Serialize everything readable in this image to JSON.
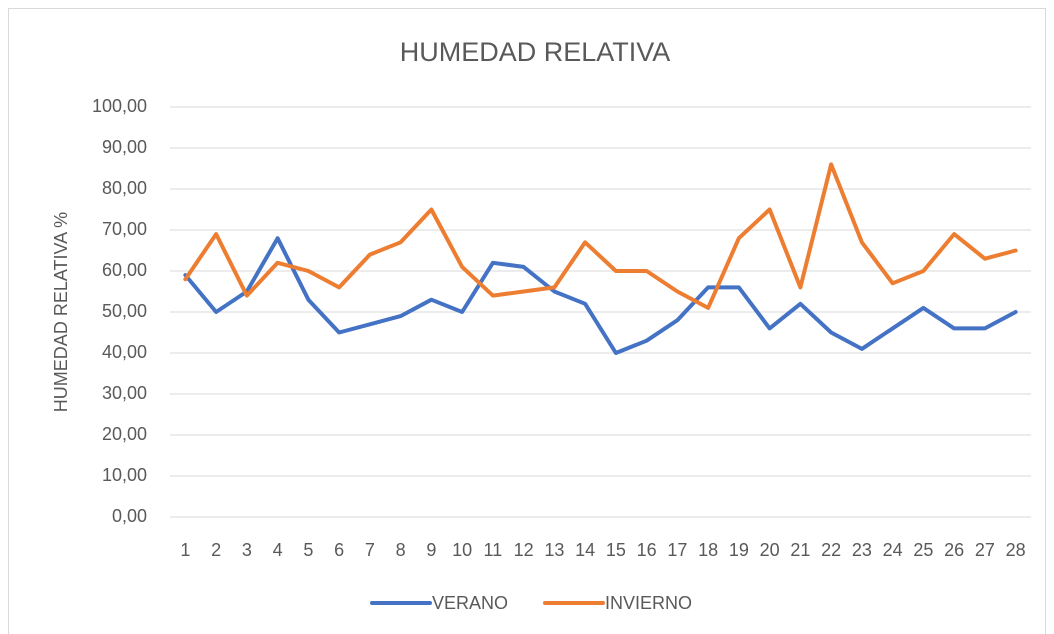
{
  "chart_data": {
    "type": "line",
    "title": "HUMEDAD RELATIVA",
    "y_label": "HUMEDAD RELATIVA %",
    "categories": [
      "1",
      "2",
      "3",
      "4",
      "5",
      "6",
      "7",
      "8",
      "9",
      "10",
      "11",
      "12",
      "13",
      "14",
      "15",
      "16",
      "17",
      "18",
      "19",
      "20",
      "21",
      "22",
      "23",
      "24",
      "25",
      "26",
      "27",
      "28"
    ],
    "series": [
      {
        "name": "VERANO",
        "color": "#4472c4",
        "values": [
          59,
          50,
          55,
          68,
          53,
          45,
          47,
          49,
          53,
          50,
          62,
          61,
          55,
          52,
          40,
          43,
          48,
          56,
          56,
          46,
          52,
          45,
          41,
          46,
          51,
          46,
          46,
          50
        ]
      },
      {
        "name": "INVIERNO",
        "color": "#ed7d31",
        "values": [
          58,
          69,
          54,
          62,
          60,
          56,
          64,
          67,
          75,
          61,
          54,
          55,
          56,
          67,
          60,
          60,
          55,
          51,
          68,
          75,
          56,
          86,
          67,
          57,
          60,
          69,
          63,
          65
        ]
      }
    ],
    "ylim": [
      0,
      100
    ],
    "yticks": [
      {
        "value": 0,
        "label": "0,00"
      },
      {
        "value": 10,
        "label": "10,00"
      },
      {
        "value": 20,
        "label": "20,00"
      },
      {
        "value": 30,
        "label": "30,00"
      },
      {
        "value": 40,
        "label": "40,00"
      },
      {
        "value": 50,
        "label": "50,00"
      },
      {
        "value": 60,
        "label": "60,00"
      },
      {
        "value": 70,
        "label": "70,00"
      },
      {
        "value": 80,
        "label": "80,00"
      },
      {
        "value": 90,
        "label": "90,00"
      },
      {
        "value": 100,
        "label": "100,00"
      }
    ],
    "grid": true,
    "legend": "bottom"
  }
}
